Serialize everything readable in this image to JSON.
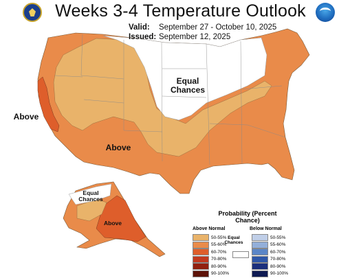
{
  "title": "Weeks 3-4 Temperature Outlook",
  "valid_label": "Valid:",
  "valid_value": "September 27 - October 10, 2025",
  "issued_label": "Issued:",
  "issued_value": "September 12, 2025",
  "map_labels": {
    "equal_chances_main": "Equal Chances",
    "above_west": "Above",
    "above_southwest": "Above",
    "alaska_equal": "Equal Chances",
    "alaska_above": "Above"
  },
  "legend": {
    "title": "Probability (Percent Chance)",
    "above_header": "Above Normal",
    "below_header": "Below Normal",
    "equal_label": "Equal Chances",
    "above_rows": [
      {
        "label": "50-55%",
        "color": "#e9b36a"
      },
      {
        "label": "55-60%",
        "color": "#e98b4a"
      },
      {
        "label": "60-70%",
        "color": "#de5e2b"
      },
      {
        "label": "70-80%",
        "color": "#c2391f"
      },
      {
        "label": "80-90%",
        "color": "#92200f"
      },
      {
        "label": "90-100%",
        "color": "#5c1208"
      }
    ],
    "below_rows": [
      {
        "label": "50-55%",
        "color": "#c0cfe8"
      },
      {
        "label": "55-60%",
        "color": "#93afd9"
      },
      {
        "label": "60-70%",
        "color": "#5b86c7"
      },
      {
        "label": "70-80%",
        "color": "#2e57a8"
      },
      {
        "label": "80-90%",
        "color": "#1b2f7d"
      },
      {
        "label": "90-100%",
        "color": "#0f1a52"
      }
    ]
  }
}
